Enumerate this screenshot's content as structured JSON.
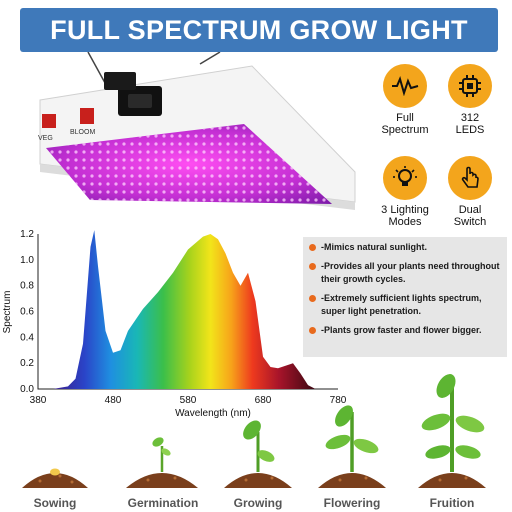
{
  "banner": {
    "title": "FULL SPECTRUM GROW LIGHT"
  },
  "fixture": {
    "switch_veg": "VEG",
    "switch_bloom": "BLOOM"
  },
  "features": [
    {
      "icon": "waveform-icon",
      "line1": "Full",
      "line2": "Spectrum"
    },
    {
      "icon": "chip-icon",
      "line1": "312",
      "line2": "LEDS"
    },
    {
      "icon": "lightbulb-icon",
      "line1": "3 Lighting",
      "line2": "Modes"
    },
    {
      "icon": "hand-switch-icon",
      "line1": "Dual",
      "line2": "Switch"
    }
  ],
  "colors": {
    "banner": "#3f79ba",
    "badge": "#f3a51c",
    "bullet": "#e86a1d",
    "panel": "#e6e6e6"
  },
  "info": {
    "items": [
      "-Mimics natural sunlight.",
      "-Provides all your plants need throughout their growth cycles.",
      "-Extremely sufficient lights spectrum, super light penetration.",
      "-Plants grow faster and flower bigger."
    ]
  },
  "chart_data": {
    "type": "area",
    "title": "",
    "xlabel": "Wavelength (nm)",
    "ylabel": "Spectrum",
    "xlim": [
      380,
      780
    ],
    "ylim": [
      0,
      1.2
    ],
    "xticks": [
      "380",
      "480",
      "580",
      "680",
      "780"
    ],
    "yticks": [
      "0.0",
      "0.2",
      "0.4",
      "0.6",
      "0.8",
      "1.0",
      "1.2"
    ],
    "grid": false,
    "series": [
      {
        "x": [
          400,
          420,
          430,
          440,
          450,
          455,
          460,
          470,
          480,
          490,
          500,
          520,
          540,
          560,
          580,
          600,
          610,
          620,
          630,
          640,
          650,
          660,
          670,
          680,
          690,
          700,
          710,
          720,
          730,
          740,
          750
        ],
        "values": [
          0.0,
          0.02,
          0.08,
          0.35,
          1.1,
          1.23,
          0.95,
          0.45,
          0.28,
          0.3,
          0.45,
          0.62,
          0.75,
          0.9,
          1.08,
          1.18,
          1.2,
          1.16,
          1.05,
          0.9,
          0.8,
          0.9,
          0.68,
          0.25,
          0.17,
          0.16,
          0.18,
          0.2,
          0.12,
          0.03,
          0.0
        ]
      }
    ]
  },
  "stages": [
    "Sowing",
    "Germination",
    "Growing",
    "Flowering",
    "Fruition"
  ]
}
